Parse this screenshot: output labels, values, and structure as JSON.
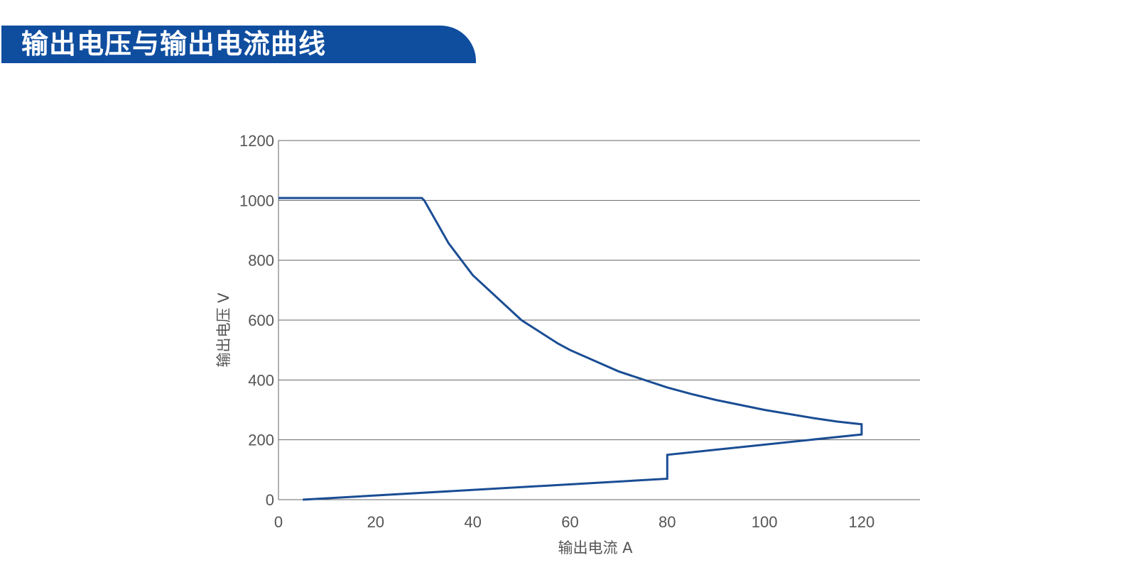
{
  "header": {
    "title": "输出电压与输出电流曲线"
  },
  "colors": {
    "banner": "#0f4d9f",
    "line": "#1a4d94",
    "grid": "#666666",
    "text": "#555555"
  },
  "chart_data": {
    "type": "line",
    "title": "",
    "xlabel": "输出电流  A",
    "ylabel": "输出电压  V",
    "xlim": [
      0,
      132
    ],
    "ylim": [
      0,
      1200
    ],
    "x_ticks": [
      "0",
      "20",
      "40",
      "60",
      "80",
      "100",
      "120"
    ],
    "y_ticks": [
      "0",
      "200",
      "400",
      "600",
      "800",
      "1000",
      "1200"
    ],
    "grid": "horizontal",
    "legend": "none",
    "series": [
      {
        "x": [
          5,
          80,
          80,
          120,
          120,
          115,
          110,
          100,
          90,
          85,
          80,
          70,
          60,
          57.5,
          50,
          40,
          35,
          30,
          29.5,
          0
        ],
        "y": [
          0,
          70,
          150,
          218,
          252,
          260.9,
          272.7,
          300,
          333.3,
          352.9,
          375,
          428.6,
          500,
          521.7,
          600,
          750,
          857.1,
          1000,
          1008,
          1008
        ]
      }
    ]
  }
}
